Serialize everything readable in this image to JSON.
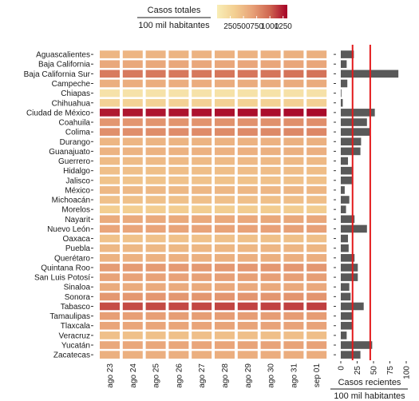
{
  "chart_data": [
    {
      "type": "heatmap",
      "legend": {
        "title": "Casos totales",
        "subtitle": "100 mil habitantes",
        "ticks": [
          250,
          500,
          750,
          1000,
          1250
        ],
        "tick_labels": [
          "250",
          "500",
          "750",
          "1000",
          "1250"
        ],
        "range": [
          0,
          1330
        ],
        "colors": [
          "#f8edb6",
          "#f3cf92",
          "#e8a278",
          "#cf6650",
          "#a50026"
        ],
        "placement": "top"
      },
      "x": [
        "ago 23",
        "ago 24",
        "ago 25",
        "ago 26",
        "ago 27",
        "ago 28",
        "ago 29",
        "ago 30",
        "ago 31",
        "sep 01"
      ],
      "states": [
        "Aguascalientes",
        "Baja California",
        "Baja California Sur",
        "Campeche",
        "Chiapas",
        "Chihuahua",
        "Ciudad de México",
        "Coahuila",
        "Colima",
        "Durango",
        "Guanajuato",
        "Guerrero",
        "Hidalgo",
        "Jalisco",
        "México",
        "Michoacán",
        "Morelos",
        "Nayarit",
        "Nuevo León",
        "Oaxaca",
        "Puebla",
        "Querétaro",
        "Quintana Roo",
        "San Luis Potosí",
        "Sinaloa",
        "Sonora",
        "Tabasco",
        "Tamaulipas",
        "Tlaxcala",
        "Veracruz",
        "Yucatán",
        "Zacatecas"
      ],
      "values": [
        [
          520,
          525,
          530,
          535,
          540,
          545,
          550,
          555,
          560,
          565
        ],
        [
          620,
          622,
          624,
          626,
          628,
          630,
          632,
          634,
          636,
          638
        ],
        [
          880,
          885,
          890,
          895,
          900,
          905,
          910,
          915,
          920,
          925
        ],
        [
          580,
          582,
          584,
          586,
          588,
          590,
          592,
          594,
          596,
          598
        ],
        [
          120,
          121,
          122,
          123,
          124,
          125,
          126,
          127,
          128,
          129
        ],
        [
          300,
          302,
          304,
          306,
          308,
          310,
          312,
          314,
          316,
          318
        ],
        [
          1250,
          1255,
          1260,
          1265,
          1270,
          1275,
          1280,
          1285,
          1290,
          1295
        ],
        [
          730,
          735,
          740,
          745,
          750,
          755,
          760,
          765,
          770,
          775
        ],
        [
          770,
          775,
          780,
          785,
          790,
          795,
          800,
          805,
          810,
          815
        ],
        [
          520,
          525,
          530,
          535,
          540,
          545,
          550,
          555,
          560,
          565
        ],
        [
          540,
          543,
          546,
          549,
          552,
          555,
          558,
          561,
          564,
          567
        ],
        [
          480,
          482,
          484,
          486,
          488,
          490,
          492,
          494,
          496,
          498
        ],
        [
          450,
          452,
          454,
          456,
          458,
          460,
          462,
          464,
          466,
          468
        ],
        [
          420,
          422,
          424,
          426,
          428,
          430,
          432,
          434,
          436,
          438
        ],
        [
          500,
          502,
          504,
          506,
          508,
          510,
          512,
          514,
          516,
          518
        ],
        [
          440,
          442,
          444,
          446,
          448,
          450,
          452,
          454,
          456,
          458
        ],
        [
          340,
          342,
          344,
          346,
          348,
          350,
          352,
          354,
          356,
          358
        ],
        [
          600,
          603,
          606,
          609,
          612,
          615,
          618,
          621,
          624,
          627
        ],
        [
          640,
          644,
          648,
          652,
          656,
          660,
          664,
          668,
          672,
          676
        ],
        [
          430,
          432,
          434,
          436,
          438,
          440,
          442,
          444,
          446,
          448
        ],
        [
          500,
          502,
          504,
          506,
          508,
          510,
          512,
          514,
          516,
          518
        ],
        [
          550,
          553,
          556,
          559,
          562,
          565,
          568,
          571,
          574,
          577
        ],
        [
          700,
          703,
          706,
          709,
          712,
          715,
          718,
          721,
          724,
          727
        ],
        [
          660,
          663,
          666,
          669,
          672,
          675,
          678,
          681,
          684,
          687
        ],
        [
          600,
          602,
          604,
          606,
          608,
          610,
          612,
          614,
          616,
          618
        ],
        [
          720,
          722,
          724,
          726,
          728,
          730,
          732,
          734,
          736,
          738
        ],
        [
          1080,
          1085,
          1090,
          1095,
          1100,
          1105,
          1110,
          1115,
          1120,
          1125
        ],
        [
          680,
          682,
          684,
          686,
          688,
          690,
          692,
          694,
          696,
          698
        ],
        [
          640,
          642,
          644,
          646,
          648,
          650,
          652,
          654,
          656,
          658
        ],
        [
          440,
          442,
          444,
          446,
          448,
          450,
          452,
          454,
          456,
          458
        ],
        [
          620,
          625,
          630,
          635,
          640,
          645,
          650,
          655,
          660,
          665
        ],
        [
          560,
          563,
          566,
          569,
          572,
          575,
          578,
          581,
          584,
          587
        ]
      ]
    },
    {
      "type": "bar",
      "orientation": "horizontal",
      "categories": [
        "Aguascalientes",
        "Baja California",
        "Baja California Sur",
        "Campeche",
        "Chiapas",
        "Chihuahua",
        "Ciudad de México",
        "Coahuila",
        "Colima",
        "Durango",
        "Guanajuato",
        "Guerrero",
        "Hidalgo",
        "Jalisco",
        "México",
        "Michoacán",
        "Morelos",
        "Nayarit",
        "Nuevo León",
        "Oaxaca",
        "Puebla",
        "Querétaro",
        "Quintana Roo",
        "San Luis Potosí",
        "Sinaloa",
        "Sonora",
        "Tabasco",
        "Tamaulipas",
        "Tlaxcala",
        "Veracruz",
        "Yucatán",
        "Zacatecas"
      ],
      "values": [
        20,
        9,
        88,
        10,
        0.5,
        3,
        52,
        40,
        44,
        31,
        30,
        11,
        17,
        17,
        6,
        13,
        8,
        21,
        40,
        11,
        12,
        21,
        26,
        26,
        13,
        15,
        35,
        17,
        17,
        9,
        48,
        30
      ],
      "xlabel": "Casos recientes",
      "xlabel2": "100 mil habitantes",
      "ticks": [
        0,
        25,
        50,
        75,
        100
      ],
      "tick_labels": [
        "0",
        "25",
        "50",
        "75",
        "100"
      ],
      "xlim": [
        0,
        100
      ],
      "reference_lines": [
        18,
        45
      ],
      "colors": {
        "bar": "#595959",
        "reference_line": "#e31a1c"
      }
    }
  ]
}
